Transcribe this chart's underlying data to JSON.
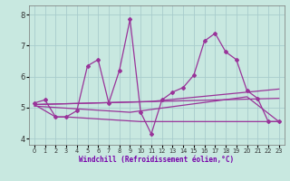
{
  "xlabel": "Windchill (Refroidissement éolien,°C)",
  "background_color": "#c8e8e0",
  "grid_color": "#a8cccc",
  "line_color": "#993399",
  "xlim": [
    -0.5,
    23.5
  ],
  "ylim": [
    3.8,
    8.3
  ],
  "yticks": [
    4,
    5,
    6,
    7,
    8
  ],
  "xticks": [
    0,
    1,
    2,
    3,
    4,
    5,
    6,
    7,
    8,
    9,
    10,
    11,
    12,
    13,
    14,
    15,
    16,
    17,
    18,
    19,
    20,
    21,
    22,
    23
  ],
  "series1_x": [
    0,
    1,
    2,
    3,
    4,
    5,
    6,
    7,
    8,
    9,
    10,
    11,
    12,
    13,
    14,
    15,
    16,
    17,
    18,
    19,
    20,
    21,
    22,
    23
  ],
  "series1_y": [
    5.15,
    5.25,
    4.7,
    4.7,
    4.9,
    6.35,
    6.55,
    5.15,
    6.2,
    7.85,
    4.85,
    4.15,
    5.25,
    5.5,
    5.65,
    6.05,
    7.15,
    7.4,
    6.8,
    6.55,
    5.55,
    5.3,
    4.55,
    4.55
  ],
  "line2_x": [
    0,
    2,
    3,
    10,
    23
  ],
  "line2_y": [
    5.1,
    4.7,
    4.7,
    4.55,
    4.55
  ],
  "line3_x": [
    0,
    23
  ],
  "line3_y": [
    5.1,
    5.3
  ],
  "line4_x": [
    0,
    9,
    20,
    23
  ],
  "line4_y": [
    5.05,
    4.85,
    5.35,
    4.55
  ],
  "line5_x": [
    0,
    11,
    23
  ],
  "line5_y": [
    5.1,
    5.2,
    5.6
  ]
}
